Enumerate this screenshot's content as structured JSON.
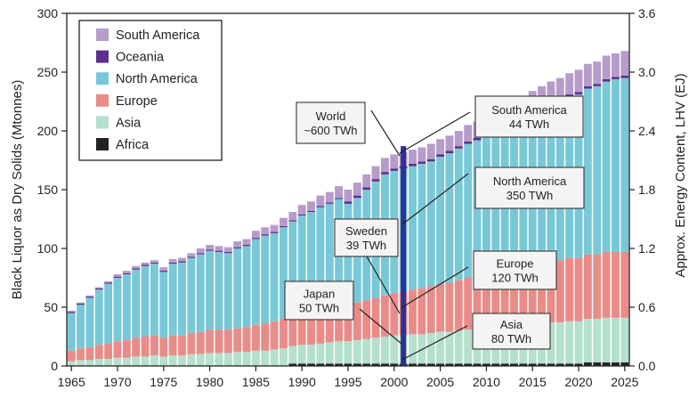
{
  "chart_data": {
    "type": "stacked-bar",
    "x_start": 1965,
    "x_end": 2025,
    "xticks": [
      1965,
      1970,
      1975,
      1980,
      1985,
      1990,
      1995,
      2000,
      2005,
      2010,
      2015,
      2020,
      2025
    ],
    "ylabel": "Black Liquor as Dry Solids (Mtonnes)",
    "ylim": [
      0,
      300
    ],
    "yticks": [
      0,
      50,
      100,
      150,
      200,
      250,
      300
    ],
    "y2label": "Approx. Energy Content, LHV (EJ)",
    "y2lim": [
      0.0,
      3.6
    ],
    "y2ticks": [
      "0.0",
      "0.6",
      "1.2",
      "1.8",
      "2.4",
      "3.0",
      "3.6"
    ],
    "highlight_year": 2001,
    "series": [
      {
        "name": "South America",
        "color": "#b79ccb",
        "values": [
          1,
          1,
          1,
          1,
          1,
          2,
          2,
          2,
          2,
          2,
          3,
          3,
          3,
          3,
          4,
          4,
          4,
          4,
          5,
          5,
          6,
          6,
          6,
          7,
          7,
          8,
          8,
          9,
          9,
          10,
          10,
          11,
          11,
          11,
          12,
          12,
          12,
          12,
          12,
          13,
          13,
          13,
          13,
          14,
          14,
          15,
          15,
          15,
          16,
          16,
          17,
          17,
          17,
          18,
          18,
          19,
          19,
          19,
          20,
          20,
          21
        ]
      },
      {
        "name": "Oceania",
        "color": "#5b2f8c",
        "values": [
          1,
          1,
          1,
          1,
          1,
          1,
          1,
          1,
          1,
          1,
          1,
          1,
          1,
          1,
          1,
          1,
          1,
          1,
          1,
          1,
          1,
          1,
          1,
          1,
          1,
          1,
          1,
          1,
          1,
          1,
          2,
          2,
          2,
          2,
          2,
          2,
          2,
          2,
          2,
          2,
          2,
          2,
          2,
          2,
          2,
          2,
          2,
          2,
          2,
          2,
          2,
          2,
          2,
          2,
          2,
          2,
          2,
          2,
          2,
          2,
          2
        ]
      },
      {
        "name": "North America",
        "color": "#79c8d8",
        "values": [
          32,
          37,
          42,
          47,
          51,
          54,
          56,
          58,
          60,
          61,
          56,
          61,
          62,
          64,
          66,
          67,
          66,
          65,
          68,
          69,
          73,
          75,
          75,
          78,
          80,
          83,
          85,
          87,
          88,
          90,
          86,
          89,
          94,
          99,
          103,
          104,
          105,
          105,
          106,
          106,
          108,
          110,
          112,
          114,
          116,
          118,
          120,
          122,
          124,
          126,
          128,
          131,
          133,
          135,
          137,
          139,
          141,
          143,
          145,
          147,
          148
        ]
      },
      {
        "name": "Europe",
        "color": "#e98c89",
        "values": [
          9,
          10,
          11,
          12,
          13,
          14,
          15,
          16,
          17,
          17,
          16,
          17,
          17,
          18,
          19,
          20,
          20,
          20,
          20,
          21,
          22,
          23,
          24,
          25,
          26,
          27,
          28,
          29,
          30,
          31,
          31,
          32,
          33,
          34,
          35,
          36,
          37,
          38,
          39,
          40,
          41,
          42,
          43,
          44,
          45,
          46,
          47,
          48,
          49,
          50,
          51,
          52,
          53,
          53,
          54,
          54,
          55,
          55,
          56,
          56,
          56
        ]
      },
      {
        "name": "Asia",
        "color": "#b5e0cc",
        "values": [
          4,
          5,
          5,
          6,
          6,
          7,
          7,
          8,
          8,
          9,
          8,
          9,
          9,
          10,
          10,
          11,
          11,
          11,
          12,
          12,
          13,
          13,
          14,
          15,
          15,
          16,
          16,
          17,
          18,
          19,
          19,
          20,
          21,
          22,
          23,
          24,
          24,
          25,
          25,
          26,
          27,
          27,
          28,
          29,
          29,
          30,
          31,
          32,
          32,
          33,
          34,
          34,
          35,
          35,
          36,
          36,
          37,
          37,
          38,
          38,
          38
        ]
      },
      {
        "name": "Africa",
        "color": "#222222",
        "values": [
          0,
          0,
          0,
          0,
          0,
          0,
          0,
          0,
          0,
          0,
          0,
          0,
          0,
          0,
          0,
          0,
          0,
          0,
          0,
          0,
          0,
          0,
          0,
          0,
          2,
          2,
          2,
          2,
          2,
          2,
          2,
          2,
          2,
          2,
          2,
          2,
          2,
          2,
          2,
          2,
          2,
          2,
          2,
          2,
          2,
          2,
          2,
          2,
          2,
          2,
          2,
          2,
          2,
          2,
          2,
          2,
          3,
          3,
          3,
          3,
          3
        ]
      }
    ],
    "legend_order": [
      "South America",
      "Oceania",
      "North America",
      "Europe",
      "Asia",
      "Africa"
    ],
    "callouts": [
      {
        "lines": [
          "World",
          "~600 TWh"
        ]
      },
      {
        "lines": [
          "South America",
          "44 TWh"
        ]
      },
      {
        "lines": [
          "North America",
          "350 TWh"
        ]
      },
      {
        "lines": [
          "Sweden",
          "39 TWh"
        ]
      },
      {
        "lines": [
          "Europe",
          "120 TWh"
        ]
      },
      {
        "lines": [
          "Japan",
          "50 TWh"
        ]
      },
      {
        "lines": [
          "Asia",
          "80 TWh"
        ]
      }
    ]
  }
}
